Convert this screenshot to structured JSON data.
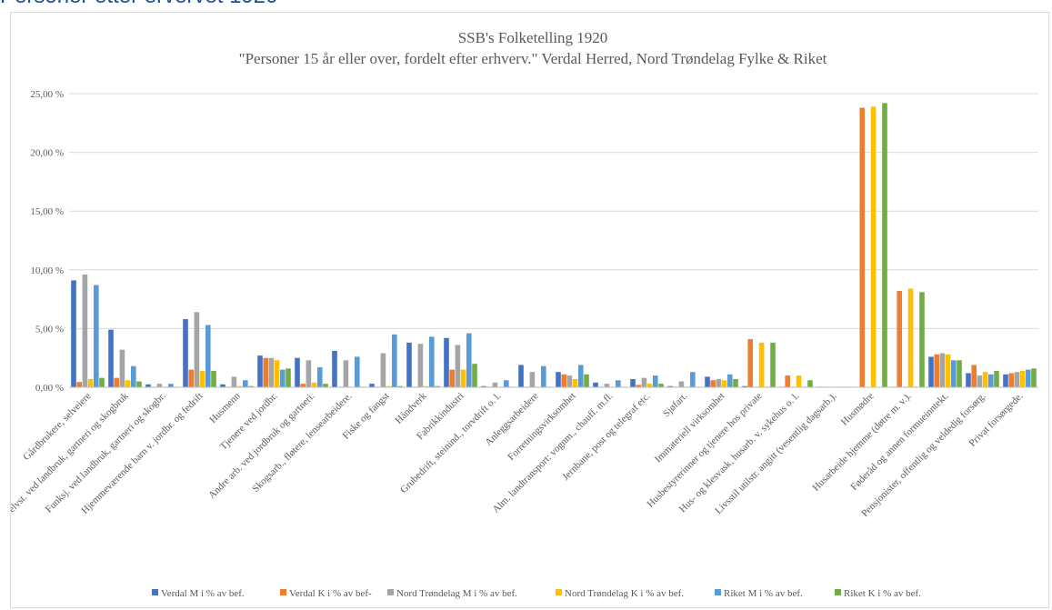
{
  "page_heading": "Personer etter ervervet 1920",
  "chart_data": {
    "type": "bar",
    "title": "SSB's Folketelling 1920",
    "subtitle": "\"Personer 15 år eller over, fordelt efter erhverv.\" Verdal Herred, Nord Trøndelag Fylke & Riket",
    "xlabel": "",
    "ylabel": "",
    "ylim": [
      0,
      25
    ],
    "yticks": [
      "0,00 %",
      "5,00 %",
      "10,00 %",
      "15,00 %",
      "20,00 %",
      "25,00 %"
    ],
    "grid": true,
    "legend_position": "bottom",
    "categories": [
      "Gårdbrukere, selveiere",
      "Selvst. ved landbruk, gartneri og skogbruk",
      "Funksj. ved landbruk, gartneri og skogbr.",
      "Hjemmeværende barn v. jordbr. og fedrift",
      "Husmenn",
      "Tjenere ved jordbr.",
      "Andre arb. ved jordbruk og gartneri.",
      "Skogsarb., fløtere, lensearbeidere.",
      "Fiske og fangst",
      "Håndverk",
      "Fabrikkindustri",
      "Grubedrift, steinind., torvdrift o. l.",
      "Anleggsarbeidere",
      "Forretningsvirksomhet",
      "Alm. landtransport: vognm., chauff. m.fl.",
      "Jernbane, post og telegraf etc.",
      "Sjøfart.",
      "Immateriell virksomhet",
      "Husbestyrerinner og tjenere hos private",
      "Hus- og klesvask, husarb. v. sykehus o. l.",
      "Livsstil utilstr. angitt (vesentlig dagsarb.).",
      "Husmødre",
      "Husarbeide hjemme (døtre m. v.).",
      "Føderåd og annen formueinntekt.",
      "Pensjonister, offentlig og veldedig forsørg.",
      "Privat forsørgede."
    ],
    "series": [
      {
        "name": "Verdal M i % av bef.",
        "color": "#4472c4",
        "values": [
          9.1,
          4.9,
          0.25,
          5.8,
          0.25,
          2.7,
          2.5,
          3.1,
          0.3,
          3.8,
          4.2,
          0.1,
          1.9,
          1.3,
          0.4,
          0.7,
          0.1,
          0.9,
          0.1,
          0.05,
          0.05,
          0.0,
          0.05,
          2.6,
          1.2,
          1.1
        ]
      },
      {
        "name": "Verdal K i % av bef-",
        "color": "#ed7d31",
        "values": [
          0.45,
          0.8,
          0.05,
          1.5,
          0.05,
          2.5,
          0.3,
          0.05,
          0.05,
          0.05,
          1.5,
          0.05,
          0.05,
          1.1,
          0.05,
          0.2,
          0.05,
          0.6,
          4.1,
          1.0,
          0.05,
          23.8,
          8.2,
          2.8,
          1.9,
          1.2
        ]
      },
      {
        "name": "Nord Trøndelag M i % av bef.",
        "color": "#a5a5a5",
        "values": [
          9.6,
          3.2,
          0.3,
          6.4,
          0.9,
          2.5,
          2.3,
          2.3,
          2.9,
          3.7,
          3.6,
          0.4,
          1.3,
          1.0,
          0.3,
          0.8,
          0.5,
          0.7,
          0.05,
          0.05,
          0.05,
          0.0,
          0.05,
          2.9,
          1.0,
          1.3
        ]
      },
      {
        "name": "Nord Trøndelag K i % av bef.",
        "color": "#ffc000",
        "values": [
          0.7,
          0.6,
          0.05,
          1.4,
          0.1,
          2.3,
          0.4,
          0.05,
          0.1,
          0.1,
          1.5,
          0.05,
          0.05,
          0.7,
          0.05,
          0.3,
          0.05,
          0.6,
          3.8,
          1.0,
          0.05,
          23.9,
          8.4,
          2.8,
          1.3,
          1.4
        ]
      },
      {
        "name": "Riket M i % av bef.",
        "color": "#5b9bd5",
        "values": [
          8.7,
          1.8,
          0.3,
          5.3,
          0.6,
          1.5,
          1.7,
          2.6,
          4.5,
          4.3,
          4.6,
          0.6,
          1.8,
          1.9,
          0.6,
          1.0,
          1.3,
          1.1,
          0.05,
          0.05,
          0.05,
          0.0,
          0.05,
          2.3,
          1.1,
          1.5
        ]
      },
      {
        "name": "Riket K i % av bef.",
        "color": "#70ad47",
        "values": [
          0.8,
          0.5,
          0.05,
          1.4,
          0.1,
          1.6,
          0.3,
          0.05,
          0.1,
          0.1,
          2.0,
          0.05,
          0.05,
          1.1,
          0.05,
          0.3,
          0.05,
          0.7,
          3.8,
          0.6,
          0.05,
          24.2,
          8.1,
          2.3,
          1.4,
          1.6
        ]
      }
    ]
  }
}
